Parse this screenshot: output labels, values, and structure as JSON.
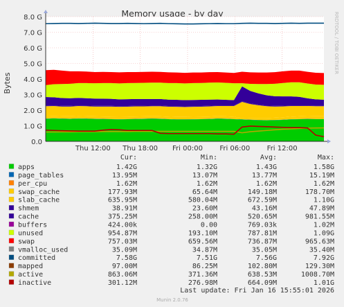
{
  "chart_data": {
    "type": "area",
    "title": "Memory usage - by day",
    "ylabel": "Bytes",
    "ylim": [
      0,
      8000000000
    ],
    "y_ticks": [
      "0.0",
      "1.0 G",
      "2.0 G",
      "3.0 G",
      "4.0 G",
      "5.0 G",
      "6.0 G",
      "7.0 G",
      "8.0 G"
    ],
    "x_ticks": [
      "Thu 12:00",
      "Thu 18:00",
      "Fri 00:00",
      "Fri 06:00",
      "Fri 12:00"
    ],
    "x_tick_hours": [
      6,
      12,
      18,
      24,
      30
    ],
    "x_range_hours": [
      0,
      35.3
    ],
    "grid": true,
    "side_label": "RRDTOOL / TOBI OETIKER",
    "columns": [
      "Cur:",
      "Min:",
      "Avg:",
      "Max:"
    ],
    "stack": [
      {
        "name": "apps",
        "color": "#00cc00",
        "cur": "1.42G",
        "min": "1.32G",
        "avg": "1.43G",
        "max": "1.58G",
        "values": [
          1.45,
          1.47,
          1.45,
          1.44,
          1.46,
          1.45,
          1.44,
          1.43,
          1.42,
          1.41,
          1.42,
          1.43,
          1.44,
          1.45,
          1.44,
          1.42,
          1.4,
          1.4,
          1.41,
          1.42,
          1.43,
          1.45,
          1.44,
          1.42,
          1.4,
          1.38,
          1.36,
          1.35,
          1.36,
          1.38,
          1.41,
          1.42,
          1.43,
          1.42,
          1.42
        ]
      },
      {
        "name": "page_tables",
        "color": "#0066b3",
        "cur": "13.95M",
        "min": "13.07M",
        "avg": "13.77M",
        "max": "15.19M",
        "values": [
          0.014,
          0.014,
          0.014,
          0.014,
          0.014,
          0.014,
          0.014,
          0.014,
          0.014,
          0.014,
          0.014,
          0.014,
          0.014,
          0.014,
          0.014,
          0.014,
          0.014,
          0.014,
          0.014,
          0.014,
          0.014,
          0.014,
          0.014,
          0.014,
          0.014,
          0.014,
          0.014,
          0.014,
          0.014,
          0.014,
          0.014,
          0.014,
          0.014,
          0.014,
          0.014
        ]
      },
      {
        "name": "per_cpu",
        "color": "#ff8000",
        "cur": "1.62M",
        "min": "1.62M",
        "avg": "1.62M",
        "max": "1.62M",
        "values": [
          0.0016,
          0.0016,
          0.0016,
          0.0016,
          0.0016,
          0.0016,
          0.0016,
          0.0016,
          0.0016,
          0.0016,
          0.0016,
          0.0016,
          0.0016,
          0.0016,
          0.0016,
          0.0016,
          0.0016,
          0.0016,
          0.0016,
          0.0016,
          0.0016,
          0.0016,
          0.0016,
          0.0016,
          0.0016,
          0.0016,
          0.0016,
          0.0016,
          0.0016,
          0.0016,
          0.0016,
          0.0016,
          0.0016,
          0.0016,
          0.0016
        ]
      },
      {
        "name": "swap_cache",
        "color": "#ffcc00",
        "cur": "177.93M",
        "min": "65.64M",
        "avg": "149.18M",
        "max": "178.70M",
        "values": [
          0.15,
          0.15,
          0.15,
          0.15,
          0.15,
          0.15,
          0.15,
          0.15,
          0.15,
          0.15,
          0.15,
          0.15,
          0.15,
          0.15,
          0.15,
          0.15,
          0.15,
          0.15,
          0.15,
          0.15,
          0.15,
          0.15,
          0.15,
          0.15,
          0.07,
          0.1,
          0.12,
          0.13,
          0.14,
          0.15,
          0.16,
          0.17,
          0.175,
          0.178,
          0.178
        ]
      },
      {
        "name": "slab_cache",
        "color": "#ffcc00",
        "cur": "635.95M",
        "min": "580.04M",
        "avg": "672.59M",
        "max": "1.10G",
        "values": [
          0.64,
          0.63,
          0.62,
          0.63,
          0.64,
          0.64,
          0.63,
          0.64,
          0.65,
          0.64,
          0.64,
          0.65,
          0.64,
          0.64,
          0.65,
          0.64,
          0.65,
          0.64,
          0.64,
          0.64,
          0.65,
          0.65,
          0.66,
          0.68,
          1.05,
          0.9,
          0.82,
          0.76,
          0.72,
          0.7,
          0.68,
          0.66,
          0.65,
          0.64,
          0.64
        ]
      },
      {
        "name": "shmem",
        "color": "#330099",
        "cur": "38.91M",
        "min": "23.60M",
        "avg": "43.16M",
        "max": "47.89M",
        "values": [
          0.04,
          0.04,
          0.04,
          0.04,
          0.04,
          0.04,
          0.04,
          0.04,
          0.04,
          0.04,
          0.04,
          0.04,
          0.04,
          0.04,
          0.04,
          0.04,
          0.04,
          0.04,
          0.04,
          0.04,
          0.04,
          0.04,
          0.04,
          0.04,
          0.04,
          0.04,
          0.04,
          0.04,
          0.04,
          0.04,
          0.04,
          0.04,
          0.04,
          0.04,
          0.04
        ]
      },
      {
        "name": "cache",
        "color": "#330099",
        "cur": "375.25M",
        "min": "258.00M",
        "avg": "520.65M",
        "max": "981.55M",
        "values": [
          0.55,
          0.52,
          0.5,
          0.49,
          0.48,
          0.47,
          0.47,
          0.46,
          0.45,
          0.44,
          0.44,
          0.43,
          0.43,
          0.42,
          0.42,
          0.41,
          0.41,
          0.4,
          0.4,
          0.4,
          0.39,
          0.38,
          0.36,
          0.34,
          0.95,
          0.8,
          0.72,
          0.66,
          0.62,
          0.6,
          0.58,
          0.55,
          0.45,
          0.4,
          0.38
        ]
      },
      {
        "name": "buffers",
        "color": "#990099",
        "cur": "424.00k",
        "min": "0.00",
        "avg": "769.03k",
        "max": "1.02M",
        "values": [
          0.0008,
          0.0008,
          0.0008,
          0.0008,
          0.0008,
          0.0008,
          0.0008,
          0.0008,
          0.0008,
          0.0008,
          0.0008,
          0.0008,
          0.0008,
          0.0008,
          0.0008,
          0.0008,
          0.0008,
          0.0008,
          0.0008,
          0.0008,
          0.0008,
          0.0008,
          0.0008,
          0.0008,
          0.0008,
          0.0008,
          0.0008,
          0.0008,
          0.0008,
          0.0008,
          0.0008,
          0.0008,
          0.0008,
          0.0008,
          0.0004
        ]
      },
      {
        "name": "unused",
        "color": "#ccff00",
        "cur": "954.87M",
        "min": "193.10M",
        "avg": "787.81M",
        "max": "1.09G",
        "values": [
          0.76,
          0.84,
          0.9,
          0.93,
          0.95,
          0.97,
          0.98,
          1.0,
          1.01,
          1.02,
          1.03,
          1.03,
          1.04,
          1.05,
          1.05,
          1.06,
          1.07,
          1.07,
          1.08,
          1.08,
          1.09,
          1.09,
          1.09,
          1.08,
          0.2,
          0.45,
          0.6,
          0.72,
          0.8,
          0.86,
          0.9,
          0.93,
          0.95,
          0.95,
          0.955
        ]
      },
      {
        "name": "swap",
        "color": "#ff0000",
        "cur": "757.03M",
        "min": "659.56M",
        "avg": "736.87M",
        "max": "965.63M",
        "values": [
          0.96,
          0.92,
          0.86,
          0.8,
          0.76,
          0.74,
          0.72,
          0.72,
          0.71,
          0.71,
          0.71,
          0.7,
          0.7,
          0.7,
          0.69,
          0.69,
          0.68,
          0.68,
          0.68,
          0.67,
          0.67,
          0.67,
          0.66,
          0.66,
          0.74,
          0.74,
          0.74,
          0.74,
          0.74,
          0.75,
          0.75,
          0.75,
          0.75,
          0.756,
          0.757
        ]
      },
      {
        "name": "vmalloc_used",
        "color": "#808080",
        "cur": "35.09M",
        "min": "34.87M",
        "avg": "35.05M",
        "max": "35.40M",
        "values": null
      },
      {
        "name": "committed",
        "color": "#004d80",
        "cur": "7.58G",
        "min": "7.51G",
        "avg": "7.56G",
        "max": "7.92G",
        "values": [
          7.55,
          7.56,
          7.57,
          7.57,
          7.56,
          7.57,
          7.58,
          7.57,
          7.56,
          7.56,
          7.57,
          7.56,
          7.55,
          7.56,
          7.57,
          7.55,
          7.54,
          7.53,
          7.53,
          7.54,
          7.55,
          7.56,
          7.55,
          7.55,
          7.57,
          7.58,
          7.57,
          7.57,
          7.56,
          7.57,
          7.58,
          7.57,
          7.58,
          7.58,
          7.58
        ]
      },
      {
        "name": "mapped",
        "color": "#8c3c00",
        "cur": "97.00M",
        "min": "86.25M",
        "avg": "102.80M",
        "max": "129.30M",
        "values": null
      },
      {
        "name": "active",
        "color": "#b3a800",
        "cur": "863.06M",
        "min": "371.36M",
        "avg": "638.53M",
        "max": "1008.70M",
        "values": [
          0.6,
          0.6,
          0.61,
          0.61,
          0.62,
          0.62,
          0.62,
          0.63,
          0.63,
          0.63,
          0.63,
          0.64,
          0.64,
          0.64,
          0.64,
          0.64,
          0.64,
          0.64,
          0.64,
          0.64,
          0.64,
          0.64,
          0.64,
          0.64,
          0.55,
          0.62,
          0.66,
          0.7,
          0.74,
          0.78,
          0.8,
          0.83,
          0.85,
          0.86,
          0.863
        ]
      },
      {
        "name": "inactive",
        "color": "#b30000",
        "cur": "301.12M",
        "min": "276.98M",
        "avg": "664.09M",
        "max": "1.01G",
        "values": [
          0.72,
          0.7,
          0.68,
          0.67,
          0.66,
          0.66,
          0.66,
          0.72,
          0.76,
          0.74,
          0.7,
          0.7,
          0.7,
          0.7,
          0.52,
          0.5,
          0.5,
          0.5,
          0.5,
          0.5,
          0.5,
          0.48,
          0.48,
          0.46,
          0.92,
          0.98,
          0.96,
          0.94,
          0.92,
          0.9,
          0.88,
          0.88,
          0.86,
          0.4,
          0.3
        ]
      }
    ],
    "last_update": "Last update: Fri Jan 16 15:55:01 2026",
    "footer": "Munin 2.0.76"
  }
}
